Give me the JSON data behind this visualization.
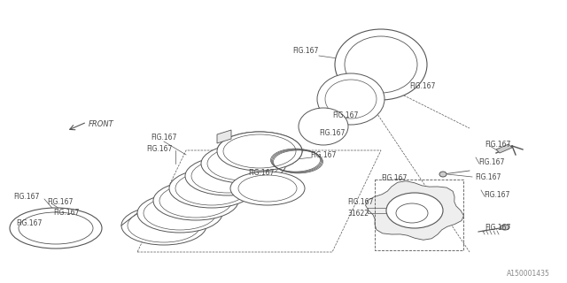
{
  "bg_color": "#ffffff",
  "line_color": "#555555",
  "text_color": "#444444",
  "fig_width": 6.4,
  "fig_height": 3.2,
  "dpi": 100,
  "watermark": "A150001435",
  "front_label": "FRONT",
  "part_label": "31622"
}
